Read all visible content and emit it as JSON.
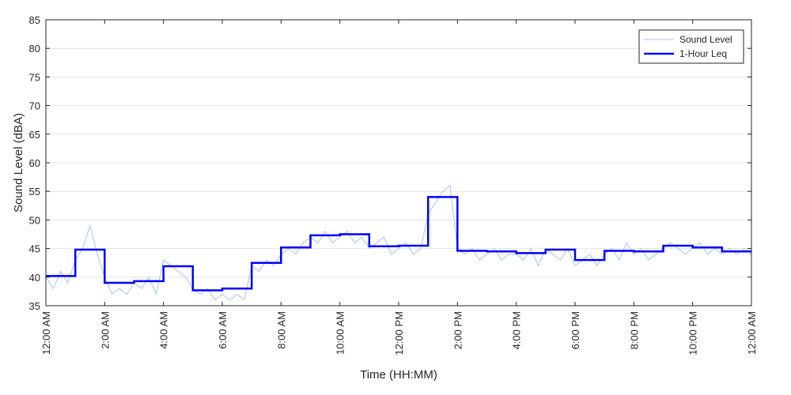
{
  "chart_data": {
    "type": "line",
    "xlabel": "Time (HH:MM)",
    "ylabel": "Sound Level (dBA)",
    "ylim": [
      35,
      85
    ],
    "xlim": [
      "12:00 AM",
      "12:00 AM"
    ],
    "x_tick_labels": [
      "12:00 AM",
      "2:00 AM",
      "4:00 AM",
      "6:00 AM",
      "8:00 AM",
      "10:00 AM",
      "12:00 PM",
      "2:00 PM",
      "4:00 PM",
      "6:00 PM",
      "8:00 PM",
      "10:00 PM",
      "12:00 AM"
    ],
    "y_ticks": [
      35,
      40,
      45,
      50,
      55,
      60,
      65,
      70,
      75,
      80,
      85
    ],
    "grid": "horizontal",
    "legend_position": "top-right",
    "series": [
      {
        "name": "Sound Level",
        "color": "#a8c4f0",
        "style": "thin line",
        "x_hours": [
          0,
          0.25,
          0.5,
          0.75,
          1,
          1.25,
          1.5,
          1.75,
          2,
          2.25,
          2.5,
          2.75,
          3,
          3.25,
          3.5,
          3.75,
          4,
          4.25,
          4.5,
          4.75,
          5,
          5.25,
          5.5,
          5.75,
          6,
          6.25,
          6.5,
          6.75,
          7,
          7.25,
          7.5,
          7.75,
          8,
          8.25,
          8.5,
          8.75,
          9,
          9.25,
          9.5,
          9.75,
          10,
          10.25,
          10.5,
          10.75,
          11,
          11.25,
          11.5,
          11.75,
          12,
          12.25,
          12.5,
          12.75,
          13,
          13.25,
          13.5,
          13.75,
          14,
          14.25,
          14.5,
          14.75,
          15,
          15.25,
          15.5,
          15.75,
          16,
          16.25,
          16.5,
          16.75,
          17,
          17.25,
          17.5,
          17.75,
          18,
          18.25,
          18.5,
          18.75,
          19,
          19.25,
          19.5,
          19.75,
          20,
          20.25,
          20.5,
          20.75,
          21,
          21.25,
          21.5,
          21.75,
          22,
          22.25,
          22.5,
          22.75,
          23,
          23.25,
          23.5,
          23.75,
          24
        ],
        "values": [
          40,
          38,
          41,
          39,
          43,
          45,
          49,
          44,
          40,
          37,
          38,
          37,
          39,
          38,
          40,
          37,
          43,
          42,
          41,
          40,
          38,
          37,
          38,
          36,
          37,
          36,
          37,
          36,
          42,
          41,
          43,
          42,
          44,
          45,
          44,
          46,
          47,
          46,
          48,
          46,
          47,
          48,
          46,
          47,
          45,
          46,
          47,
          44,
          45,
          46,
          44,
          45,
          51,
          53,
          55,
          56,
          45,
          44,
          45,
          43,
          44,
          45,
          43,
          44,
          44,
          43,
          45,
          42,
          45,
          44,
          43,
          45,
          42,
          43,
          44,
          42,
          44,
          45,
          43,
          46,
          44,
          45,
          43,
          44,
          45,
          46,
          45,
          44,
          45,
          46,
          44,
          45,
          44,
          45,
          44,
          45,
          44
        ]
      },
      {
        "name": "1-Hour Leq",
        "color": "#0000ff",
        "style": "thick step",
        "hours": [
          0,
          1,
          2,
          3,
          4,
          5,
          6,
          7,
          8,
          9,
          10,
          11,
          12,
          13,
          14,
          15,
          16,
          17,
          18,
          19,
          20,
          21,
          22,
          23
        ],
        "values": [
          40.2,
          44.8,
          39.0,
          39.3,
          41.9,
          37.7,
          38.0,
          42.5,
          45.2,
          47.3,
          47.5,
          45.4,
          45.5,
          54.0,
          44.6,
          44.5,
          44.2,
          44.8,
          43.0,
          44.6,
          44.5,
          45.5,
          45.2,
          44.5
        ]
      }
    ]
  }
}
